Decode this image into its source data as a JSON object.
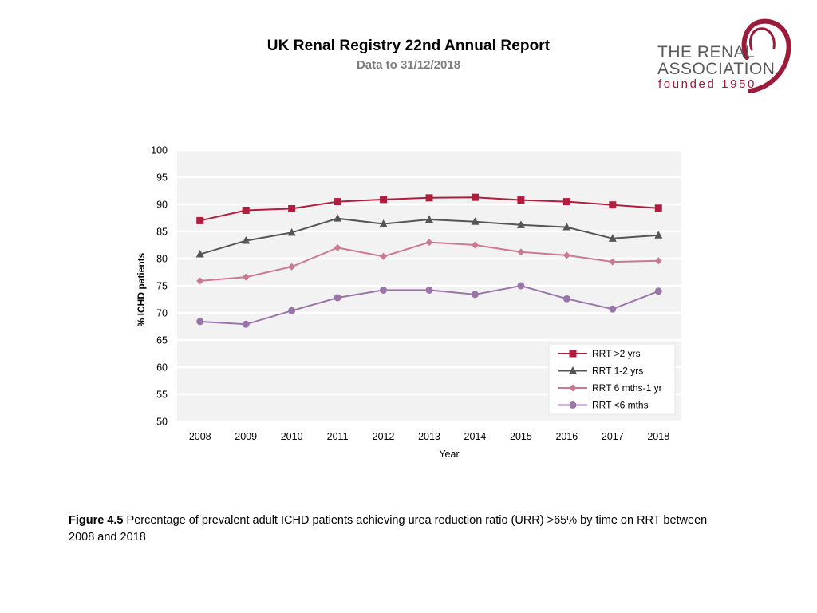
{
  "header": {
    "title": "UK Renal Registry 22nd Annual Report",
    "subtitle": "Data to 31/12/2018"
  },
  "logo": {
    "line1": "THE RENAL",
    "line2": "ASSOCIATION",
    "line3": "founded 1950"
  },
  "caption": {
    "label": "Figure 4.5",
    "text": " Percentage of prevalent adult ICHD patients achieving urea reduction ratio (URR) >65% by time on RRT between 2008 and 2018"
  },
  "colors": {
    "plot_bg": "#f2f2f2",
    "grid": "#ffffff",
    "brand": "#9b1b3b"
  },
  "chart_data": {
    "type": "line",
    "title": "",
    "xlabel": "Year",
    "ylabel": "% ICHD patients",
    "categories": [
      "2008",
      "2009",
      "2010",
      "2011",
      "2012",
      "2013",
      "2014",
      "2015",
      "2016",
      "2017",
      "2018"
    ],
    "ylim": [
      50,
      100
    ],
    "yticks": [
      50,
      55,
      60,
      65,
      70,
      75,
      80,
      85,
      90,
      95,
      100
    ],
    "grid": true,
    "legend_position": "bottom-right",
    "series": [
      {
        "name": "RRT >2 yrs",
        "marker": "square",
        "color": "#b01e3e",
        "values": [
          87.0,
          88.9,
          89.2,
          90.5,
          90.9,
          91.2,
          91.3,
          90.8,
          90.5,
          89.9,
          89.3
        ]
      },
      {
        "name": "RRT 1-2 yrs",
        "marker": "triangle",
        "color": "#555555",
        "values": [
          80.8,
          83.3,
          84.8,
          87.4,
          86.4,
          87.2,
          86.8,
          86.2,
          85.8,
          83.7,
          84.3
        ]
      },
      {
        "name": "RRT 6 mths-1 yr",
        "marker": "diamond",
        "color": "#c97a8f",
        "values": [
          75.9,
          76.6,
          78.5,
          82.0,
          80.4,
          83.0,
          82.5,
          81.2,
          80.6,
          79.4,
          79.6
        ]
      },
      {
        "name": "RRT <6 mths",
        "marker": "circle",
        "color": "#9a76a8",
        "values": [
          68.4,
          67.9,
          70.4,
          72.8,
          74.2,
          74.2,
          73.4,
          75.0,
          72.6,
          70.7,
          74.0
        ]
      }
    ]
  }
}
